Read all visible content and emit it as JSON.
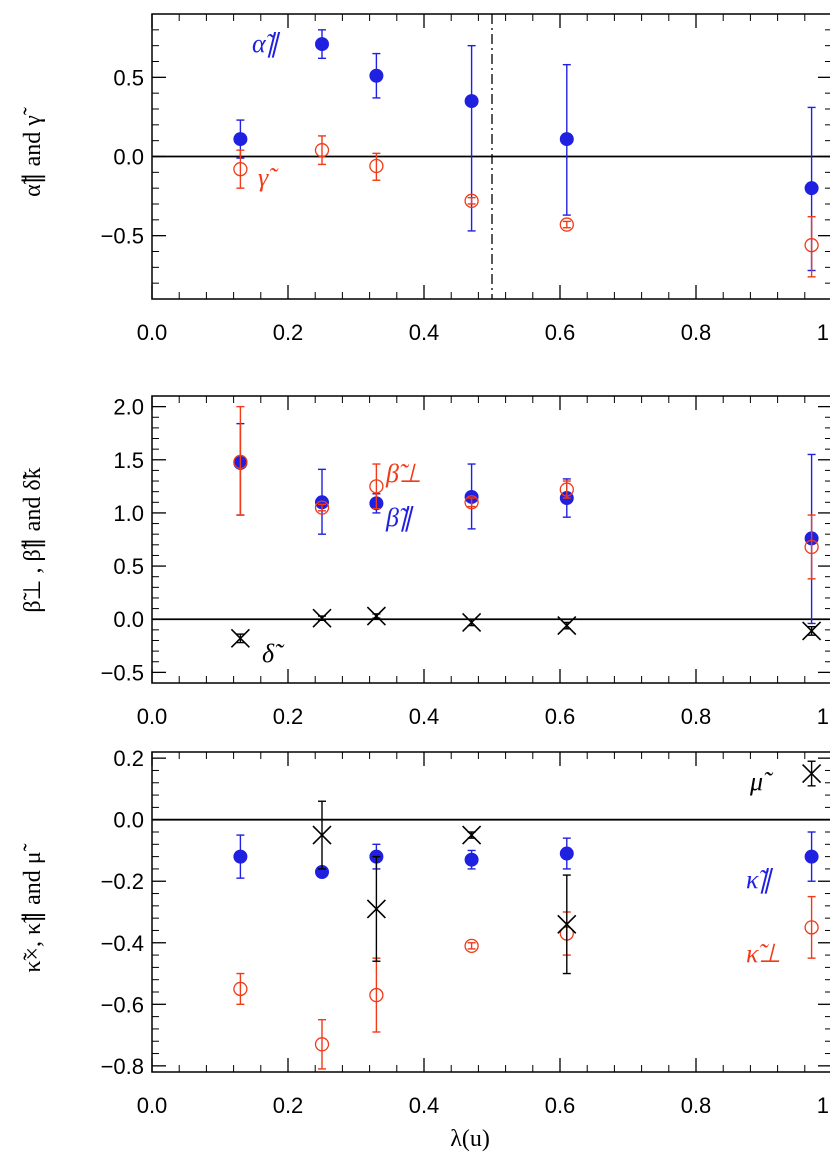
{
  "colors": {
    "blue": "#2020e0",
    "red": "#f03a18",
    "black": "#000000"
  },
  "chart_data": [
    {
      "type": "scatter",
      "title": "",
      "xlabel": "",
      "ylabel": "α̃∥ and γ̃",
      "xlim": [
        0.0,
        1.0
      ],
      "ylim": [
        -0.9,
        0.9
      ],
      "xticks": [
        "0.0",
        "0.2",
        "0.4",
        "0.6",
        "0.8",
        "1.0"
      ],
      "yticks": [
        "-0.5",
        "0.0",
        "0.5"
      ],
      "hlines": [
        0.0
      ],
      "vlines": [
        {
          "x": 0.5,
          "style": "dash-dot"
        }
      ],
      "series": [
        {
          "name": "α̃∥",
          "marker": "filled-circle",
          "color": "#2020e0",
          "x": [
            0.13,
            0.25,
            0.33,
            0.47,
            0.61,
            0.97
          ],
          "y": [
            0.11,
            0.71,
            0.51,
            0.35,
            0.11,
            -0.2
          ],
          "err_low": [
            0.12,
            0.09,
            0.14,
            0.82,
            0.48,
            0.52
          ],
          "err_high": [
            0.12,
            0.09,
            0.14,
            0.35,
            0.47,
            0.51
          ]
        },
        {
          "name": "γ̃",
          "marker": "open-circle",
          "color": "#f03a18",
          "x": [
            0.13,
            0.25,
            0.33,
            0.47,
            0.61,
            0.97
          ],
          "y": [
            -0.08,
            0.04,
            -0.06,
            -0.28,
            -0.43,
            -0.56
          ],
          "err_low": [
            0.12,
            0.09,
            0.09,
            0.02,
            0.02,
            0.2
          ],
          "err_high": [
            0.12,
            0.09,
            0.08,
            0.02,
            0.02,
            0.18
          ]
        }
      ]
    },
    {
      "type": "scatter",
      "title": "",
      "xlabel": "",
      "ylabel": "β̃⊥ , β̃∥ and δ̃k",
      "xlim": [
        0.0,
        1.0
      ],
      "ylim": [
        -0.6,
        2.1
      ],
      "xticks": [
        "0.0",
        "0.2",
        "0.4",
        "0.6",
        "0.8",
        "1.0"
      ],
      "yticks": [
        "-0.5",
        "0.0",
        "0.5",
        "1.0",
        "1.5",
        "2.0"
      ],
      "hlines": [
        0.0
      ],
      "series": [
        {
          "name": "β̃∥",
          "marker": "filled-circle",
          "color": "#2020e0",
          "x": [
            0.13,
            0.25,
            0.33,
            0.47,
            0.61,
            0.97
          ],
          "y": [
            1.47,
            1.1,
            1.09,
            1.15,
            1.14,
            0.76
          ],
          "err_low": [
            0.49,
            0.3,
            0.09,
            0.3,
            0.18,
            0.8
          ],
          "err_high": [
            0.37,
            0.31,
            0.09,
            0.31,
            0.18,
            0.79
          ]
        },
        {
          "name": "β̃⊥",
          "marker": "open-circle",
          "color": "#f03a18",
          "x": [
            0.13,
            0.25,
            0.33,
            0.47,
            0.61,
            0.97
          ],
          "y": [
            1.48,
            1.05,
            1.25,
            1.1,
            1.22,
            0.68
          ],
          "err_low": [
            0.5,
            0.03,
            0.21,
            0.04,
            0.08,
            0.3
          ],
          "err_high": [
            0.52,
            0.03,
            0.21,
            0.04,
            0.08,
            0.3
          ]
        },
        {
          "name": "δ̃",
          "marker": "cross",
          "color": "#000000",
          "x": [
            0.13,
            0.25,
            0.33,
            0.47,
            0.61,
            0.97
          ],
          "y": [
            -0.18,
            0.01,
            0.03,
            -0.03,
            -0.06,
            -0.11
          ],
          "err_low": [
            0.04,
            0.02,
            0.02,
            0.03,
            0.03,
            0.04
          ],
          "err_high": [
            0.04,
            0.02,
            0.02,
            0.03,
            0.03,
            0.04
          ]
        }
      ]
    },
    {
      "type": "scatter",
      "title": "",
      "xlabel": "λ(u)",
      "ylabel": "κ̃×, κ̃∥ and μ̃",
      "xlim": [
        0.0,
        1.0
      ],
      "ylim": [
        -0.82,
        0.22
      ],
      "xticks": [
        "0.0",
        "0.2",
        "0.4",
        "0.6",
        "0.8",
        "1.0"
      ],
      "yticks": [
        "-0.8",
        "-0.6",
        "-0.4",
        "-0.2",
        "0.0",
        "0.2"
      ],
      "hlines": [
        0.0
      ],
      "series": [
        {
          "name": "κ̃∥",
          "marker": "filled-circle",
          "color": "#2020e0",
          "x": [
            0.13,
            0.25,
            0.33,
            0.47,
            0.61,
            0.97
          ],
          "y": [
            -0.12,
            -0.17,
            -0.12,
            -0.13,
            -0.11,
            -0.12
          ],
          "err_low": [
            0.07,
            0.0,
            0.04,
            0.03,
            0.05,
            0.08
          ],
          "err_high": [
            0.07,
            0.0,
            0.04,
            0.03,
            0.05,
            0.08
          ]
        },
        {
          "name": "κ̃⊥",
          "marker": "open-circle",
          "color": "#f03a18",
          "x": [
            0.13,
            0.25,
            0.33,
            0.47,
            0.61,
            0.97
          ],
          "y": [
            -0.55,
            -0.73,
            -0.57,
            -0.41,
            -0.37,
            -0.35
          ],
          "err_low": [
            0.05,
            0.08,
            0.12,
            0.01,
            0.07,
            0.1
          ],
          "err_high": [
            0.05,
            0.08,
            0.12,
            0.01,
            0.07,
            0.1
          ]
        },
        {
          "name": "μ̃",
          "marker": "cross",
          "color": "#000000",
          "x": [
            0.25,
            0.33,
            0.47,
            0.61,
            0.97
          ],
          "y": [
            -0.05,
            -0.29,
            -0.05,
            -0.34,
            0.15
          ],
          "err_low": [
            0.11,
            0.17,
            0.01,
            0.16,
            0.04
          ],
          "err_high": [
            0.11,
            0.17,
            0.01,
            0.16,
            0.04
          ]
        }
      ]
    }
  ]
}
